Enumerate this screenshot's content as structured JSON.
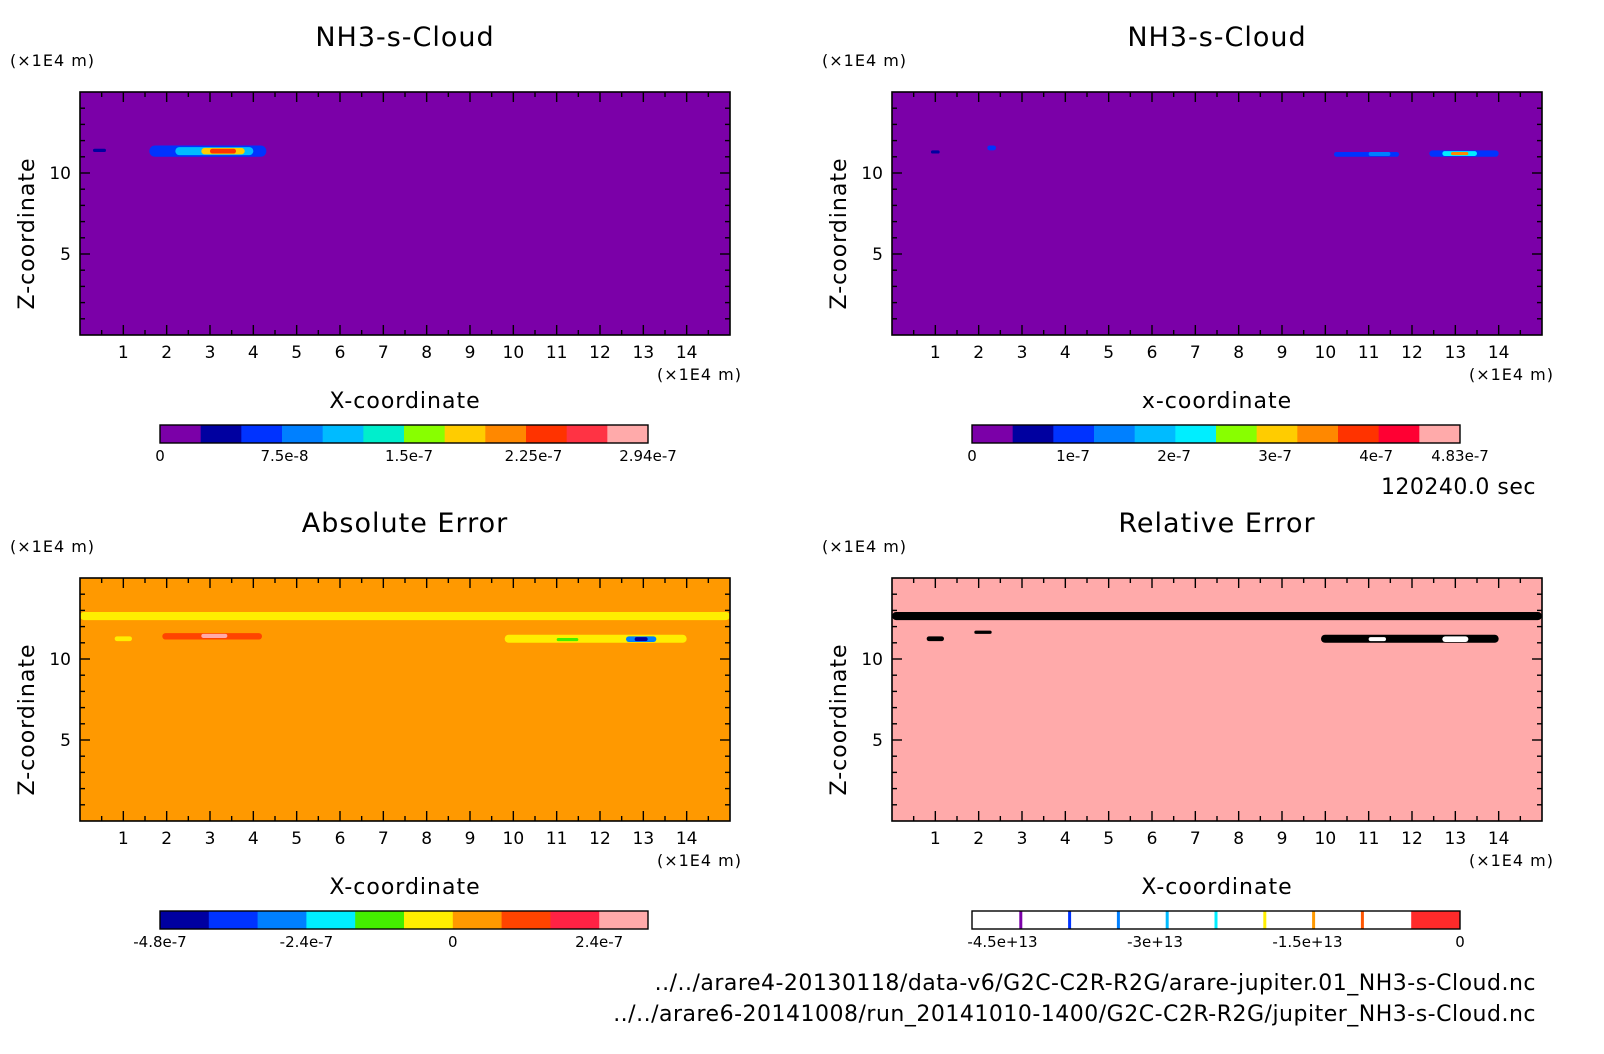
{
  "info": {
    "time": "120240.0 sec",
    "files": [
      "../../arare4-20130118/data-v6/G2C-C2R-R2G/arare-jupiter.01_NH3-s-Cloud.nc",
      "../../arare6-20141008/run_20141010-1400/G2C-C2R-R2G/jupiter_NH3-s-Cloud.nc"
    ]
  },
  "chart_data": [
    {
      "type": "heatmap",
      "title": "NH3-s-Cloud",
      "xlabel": "X-coordinate",
      "ylabel": "Z-coordinate",
      "x_unit": "(×1E4 m)",
      "y_unit": "(×1E4 m)",
      "xlim": [
        0,
        15
      ],
      "ylim": [
        0,
        15
      ],
      "x_ticks": [
        1,
        2,
        3,
        4,
        5,
        6,
        7,
        8,
        9,
        10,
        11,
        12,
        13,
        14
      ],
      "y_ticks": [
        5,
        10
      ],
      "background_color": "#7b00a8",
      "features": [
        {
          "x": [
            0.3,
            0.6
          ],
          "z": [
            11.3,
            11.5
          ],
          "level": 1
        },
        {
          "x": [
            1.6,
            4.3
          ],
          "z": [
            11.0,
            11.7
          ],
          "level": 2
        },
        {
          "x": [
            2.2,
            4.0
          ],
          "z": [
            11.1,
            11.6
          ],
          "level": 4
        },
        {
          "x": [
            2.8,
            3.8
          ],
          "z": [
            11.15,
            11.55
          ],
          "level": 7
        },
        {
          "x": [
            3.0,
            3.6
          ],
          "z": [
            11.2,
            11.5
          ],
          "level": 9
        }
      ],
      "colorbar": {
        "colors": [
          "#7b00a8",
          "#0000a0",
          "#0033ff",
          "#0080ff",
          "#00bbff",
          "#00eecc",
          "#88ff00",
          "#ffcc00",
          "#ff8800",
          "#ff3300",
          "#ff3344",
          "#ffaaaa"
        ],
        "labels": [
          "0",
          "7.5e-8",
          "1.5e-7",
          "2.25e-7",
          "2.94e-7"
        ],
        "label_values": [
          0,
          7.5e-08,
          1.5e-07,
          2.25e-07,
          2.94e-07
        ],
        "range": [
          0,
          2.94e-07
        ]
      }
    },
    {
      "type": "heatmap",
      "title": "NH3-s-Cloud",
      "xlabel": "x-coordinate",
      "ylabel": "Z-coordinate",
      "x_unit": "(×1E4 m)",
      "y_unit": "(×1E4 m)",
      "xlim": [
        0,
        15
      ],
      "ylim": [
        0,
        15
      ],
      "x_ticks": [
        1,
        2,
        3,
        4,
        5,
        6,
        7,
        8,
        9,
        10,
        11,
        12,
        13,
        14
      ],
      "y_ticks": [
        5,
        10
      ],
      "background_color": "#7b00a8",
      "features": [
        {
          "x": [
            0.9,
            1.1
          ],
          "z": [
            11.2,
            11.4
          ],
          "level": 1
        },
        {
          "x": [
            2.2,
            2.4
          ],
          "z": [
            11.4,
            11.7
          ],
          "level": 2
        },
        {
          "x": [
            10.2,
            11.7
          ],
          "z": [
            11.0,
            11.3
          ],
          "level": 2
        },
        {
          "x": [
            11.0,
            11.5
          ],
          "z": [
            11.05,
            11.3
          ],
          "level": 3
        },
        {
          "x": [
            12.4,
            14.0
          ],
          "z": [
            11.0,
            11.4
          ],
          "level": 2
        },
        {
          "x": [
            12.7,
            13.5
          ],
          "z": [
            11.05,
            11.35
          ],
          "level": 5
        },
        {
          "x": [
            12.9,
            13.3
          ],
          "z": [
            11.1,
            11.3
          ],
          "level": 8
        }
      ],
      "colorbar": {
        "colors": [
          "#7b00a8",
          "#0000a0",
          "#0033ff",
          "#0080ff",
          "#00bbff",
          "#00eeff",
          "#88ff00",
          "#ffcc00",
          "#ff8800",
          "#ff3300",
          "#ff0033",
          "#ffaaaa"
        ],
        "labels": [
          "0",
          "1e-7",
          "2e-7",
          "3e-7",
          "4e-7",
          "4.83e-7"
        ],
        "label_values": [
          0,
          1e-07,
          2e-07,
          3e-07,
          4e-07,
          4.83e-07
        ],
        "range": [
          0,
          4.83e-07
        ]
      }
    },
    {
      "type": "heatmap",
      "title": "Absolute Error",
      "xlabel": "X-coordinate",
      "ylabel": "Z-coordinate",
      "x_unit": "(×1E4 m)",
      "y_unit": "(×1E4 m)",
      "xlim": [
        0,
        15
      ],
      "ylim": [
        0,
        15
      ],
      "x_ticks": [
        1,
        2,
        3,
        4,
        5,
        6,
        7,
        8,
        9,
        10,
        11,
        12,
        13,
        14
      ],
      "y_ticks": [
        5,
        10
      ],
      "background_color": "#ff9900",
      "features": [
        {
          "x": [
            0.0,
            15.0
          ],
          "z": [
            12.4,
            12.9
          ],
          "level": 5
        },
        {
          "x": [
            0.8,
            1.2
          ],
          "z": [
            11.1,
            11.4
          ],
          "level": 5
        },
        {
          "x": [
            1.9,
            4.2
          ],
          "z": [
            11.2,
            11.6
          ],
          "level": 7
        },
        {
          "x": [
            2.8,
            3.4
          ],
          "z": [
            11.3,
            11.55
          ],
          "level": 9
        },
        {
          "x": [
            9.8,
            14.0
          ],
          "z": [
            11.0,
            11.5
          ],
          "level": 5
        },
        {
          "x": [
            11.0,
            11.5
          ],
          "z": [
            11.1,
            11.3
          ],
          "level": 4
        },
        {
          "x": [
            12.6,
            13.3
          ],
          "z": [
            11.05,
            11.4
          ],
          "level": 2
        },
        {
          "x": [
            12.8,
            13.1
          ],
          "z": [
            11.1,
            11.35
          ],
          "level": 0
        }
      ],
      "colorbar": {
        "colors": [
          "#0000a0",
          "#0033ff",
          "#0080ff",
          "#00eeff",
          "#44ee00",
          "#ffee00",
          "#ff9900",
          "#ff4400",
          "#ff2244",
          "#ffaaaa"
        ],
        "labels": [
          "-4.8e-7",
          "-2.4e-7",
          "0",
          "2.4e-7"
        ],
        "label_values": [
          -4.8e-07,
          -2.4e-07,
          0,
          2.4e-07
        ],
        "range": [
          -4.8e-07,
          3.2e-07
        ]
      }
    },
    {
      "type": "heatmap",
      "title": "Relative Error",
      "xlabel": "X-coordinate",
      "ylabel": "Z-coordinate",
      "x_unit": "(×1E4 m)",
      "y_unit": "(×1E4 m)",
      "xlim": [
        0,
        15
      ],
      "ylim": [
        0,
        15
      ],
      "x_ticks": [
        1,
        2,
        3,
        4,
        5,
        6,
        7,
        8,
        9,
        10,
        11,
        12,
        13,
        14
      ],
      "y_ticks": [
        5,
        10
      ],
      "background_color": "#ffaaaa",
      "features": [
        {
          "x": [
            0.0,
            15.0
          ],
          "z": [
            12.4,
            12.9
          ],
          "level": 10
        },
        {
          "x": [
            0.8,
            1.2
          ],
          "z": [
            11.1,
            11.4
          ],
          "level": 10
        },
        {
          "x": [
            1.9,
            2.3
          ],
          "z": [
            11.55,
            11.75
          ],
          "level": 10
        },
        {
          "x": [
            9.9,
            14.0
          ],
          "z": [
            11.0,
            11.5
          ],
          "level": 10
        },
        {
          "x": [
            10.5,
            10.9
          ],
          "z": [
            11.1,
            11.35
          ],
          "level": 11
        },
        {
          "x": [
            11.0,
            11.4
          ],
          "z": [
            11.1,
            11.35
          ],
          "level": 6
        },
        {
          "x": [
            12.7,
            13.3
          ],
          "z": [
            11.05,
            11.4
          ],
          "level": 3
        },
        {
          "x": [
            12.9,
            13.1
          ],
          "z": [
            11.1,
            11.3
          ],
          "level": 1
        }
      ],
      "colorbar": {
        "colors": [
          "#ffffff",
          "#ffffff",
          "#ffffff",
          "#ffffff",
          "#ffffff",
          "#ffffff",
          "#ffffff",
          "#ffffff",
          "#ffffff",
          "#ff2a2a"
        ],
        "separator_colors": [
          "#7b00a8",
          "#0033ff",
          "#0080ff",
          "#00bbff",
          "#00eeff",
          "#ffee00",
          "#ff9900",
          "#ff5500"
        ],
        "labels": [
          "-4.5e+13",
          "-3e+13",
          "-1.5e+13",
          "0"
        ],
        "label_values": [
          -45000000000000.0,
          -30000000000000.0,
          -15000000000000.0,
          0
        ],
        "range": [
          -48000000000000.0,
          0
        ]
      }
    }
  ]
}
